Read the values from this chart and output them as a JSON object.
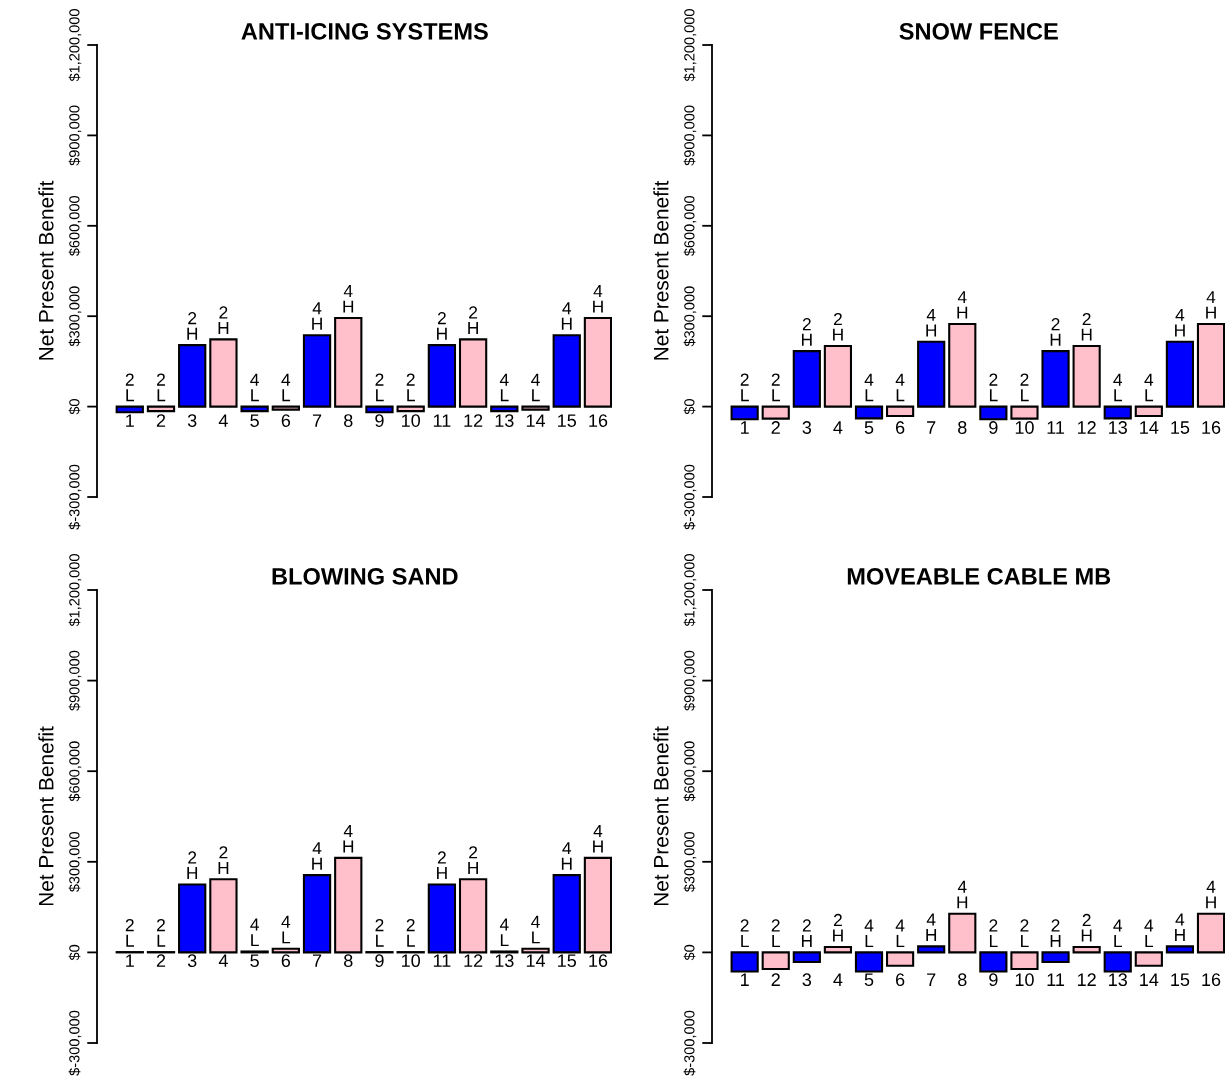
{
  "chart_data": [
    {
      "type": "bar",
      "title": "ANTI-ICING SYSTEMS",
      "ylabel": "Net Present Benefit",
      "categories": [
        "1",
        "2",
        "3",
        "4",
        "5",
        "6",
        "7",
        "8",
        "9",
        "10",
        "11",
        "12",
        "13",
        "14",
        "15",
        "16"
      ],
      "values": [
        -19000,
        -15000,
        204000,
        223000,
        -15000,
        -10000,
        237000,
        294000,
        -19000,
        -15000,
        204000,
        223000,
        -15000,
        -10000,
        237000,
        294000
      ],
      "colors": [
        "#0000ff",
        "#ffc0cb",
        "#0000ff",
        "#ffc0cb",
        "#0000ff",
        "#ffc0cb",
        "#0000ff",
        "#ffc0cb",
        "#0000ff",
        "#ffc0cb",
        "#0000ff",
        "#ffc0cb",
        "#0000ff",
        "#ffc0cb",
        "#0000ff",
        "#ffc0cb"
      ],
      "annotations": [
        {
          "text": "2\nL",
          "x": "1",
          "y": 0
        },
        {
          "text": "2\nL",
          "x": "2",
          "y": 0
        },
        {
          "text": "2\nH",
          "x": "3",
          "y": 204000
        },
        {
          "text": "2\nH",
          "x": "4",
          "y": 223000
        },
        {
          "text": "4\nL",
          "x": "5",
          "y": 0
        },
        {
          "text": "4\nL",
          "x": "6",
          "y": 0
        },
        {
          "text": "4\nH",
          "x": "7",
          "y": 237000
        },
        {
          "text": "4\nH",
          "x": "8",
          "y": 294000
        },
        {
          "text": "2\nL",
          "x": "9",
          "y": 0
        },
        {
          "text": "2\nL",
          "x": "10",
          "y": 0
        },
        {
          "text": "2\nH",
          "x": "11",
          "y": 204000
        },
        {
          "text": "2\nH",
          "x": "12",
          "y": 223000
        },
        {
          "text": "4\nL",
          "x": "13",
          "y": 0
        },
        {
          "text": "4\nL",
          "x": "14",
          "y": 0
        },
        {
          "text": "4\nH",
          "x": "15",
          "y": 237000
        },
        {
          "text": "4\nH",
          "x": "16",
          "y": 294000
        }
      ],
      "ylim": [
        -300000,
        1200000
      ],
      "yticks": [
        {
          "value": -300000,
          "label": "$-300,000"
        },
        {
          "value": 0,
          "label": "$0"
        },
        {
          "value": 300000,
          "label": "$300,000"
        },
        {
          "value": 600000,
          "label": "$600,000"
        },
        {
          "value": 900000,
          "label": "$900,000"
        },
        {
          "value": 1200000,
          "label": "$1,200,000"
        }
      ]
    },
    {
      "type": "bar",
      "title": "SNOW FENCE",
      "ylabel": "Net Present Benefit",
      "categories": [
        "1",
        "2",
        "3",
        "4",
        "5",
        "6",
        "7",
        "8",
        "9",
        "10",
        "11",
        "12",
        "13",
        "14",
        "15",
        "16"
      ],
      "values": [
        -42000,
        -40000,
        184000,
        201000,
        -39000,
        -31000,
        215000,
        274000,
        -42000,
        -40000,
        184000,
        201000,
        -39000,
        -31000,
        215000,
        274000
      ],
      "colors": [
        "#0000ff",
        "#ffc0cb",
        "#0000ff",
        "#ffc0cb",
        "#0000ff",
        "#ffc0cb",
        "#0000ff",
        "#ffc0cb",
        "#0000ff",
        "#ffc0cb",
        "#0000ff",
        "#ffc0cb",
        "#0000ff",
        "#ffc0cb",
        "#0000ff",
        "#ffc0cb"
      ],
      "annotations": [
        {
          "text": "2\nL",
          "x": "1",
          "y": 0
        },
        {
          "text": "2\nL",
          "x": "2",
          "y": 0
        },
        {
          "text": "2\nH",
          "x": "3",
          "y": 184000
        },
        {
          "text": "2\nH",
          "x": "4",
          "y": 201000
        },
        {
          "text": "4\nL",
          "x": "5",
          "y": 0
        },
        {
          "text": "4\nL",
          "x": "6",
          "y": 0
        },
        {
          "text": "4\nH",
          "x": "7",
          "y": 215000
        },
        {
          "text": "4\nH",
          "x": "8",
          "y": 274000
        },
        {
          "text": "2\nL",
          "x": "9",
          "y": 0
        },
        {
          "text": "2\nL",
          "x": "10",
          "y": 0
        },
        {
          "text": "2\nH",
          "x": "11",
          "y": 184000
        },
        {
          "text": "2\nH",
          "x": "12",
          "y": 201000
        },
        {
          "text": "4\nL",
          "x": "13",
          "y": 0
        },
        {
          "text": "4\nL",
          "x": "14",
          "y": 0
        },
        {
          "text": "4\nH",
          "x": "15",
          "y": 215000
        },
        {
          "text": "4\nH",
          "x": "16",
          "y": 274000
        }
      ],
      "ylim": [
        -300000,
        1200000
      ],
      "yticks": [
        {
          "value": -300000,
          "label": "$-300,000"
        },
        {
          "value": 0,
          "label": "$0"
        },
        {
          "value": 300000,
          "label": "$300,000"
        },
        {
          "value": 600000,
          "label": "$600,000"
        },
        {
          "value": 900000,
          "label": "$900,000"
        },
        {
          "value": 1200000,
          "label": "$1,200,000"
        }
      ]
    },
    {
      "type": "bar",
      "title": "BLOWING SAND",
      "ylabel": "Net Present Benefit",
      "categories": [
        "1",
        "2",
        "3",
        "4",
        "5",
        "6",
        "7",
        "8",
        "9",
        "10",
        "11",
        "12",
        "13",
        "14",
        "15",
        "16"
      ],
      "values": [
        1000,
        1000,
        225000,
        242000,
        3000,
        12000,
        256000,
        313000,
        1000,
        1000,
        225000,
        242000,
        3000,
        12000,
        256000,
        313000
      ],
      "colors": [
        "#0000ff",
        "#ffc0cb",
        "#0000ff",
        "#ffc0cb",
        "#0000ff",
        "#ffc0cb",
        "#0000ff",
        "#ffc0cb",
        "#0000ff",
        "#ffc0cb",
        "#0000ff",
        "#ffc0cb",
        "#0000ff",
        "#ffc0cb",
        "#0000ff",
        "#ffc0cb"
      ],
      "annotations": [
        {
          "text": "2\nL",
          "x": "1",
          "y": 1000
        },
        {
          "text": "2\nL",
          "x": "2",
          "y": 1000
        },
        {
          "text": "2\nH",
          "x": "3",
          "y": 225000
        },
        {
          "text": "2\nH",
          "x": "4",
          "y": 242000
        },
        {
          "text": "4\nL",
          "x": "5",
          "y": 3000
        },
        {
          "text": "4\nL",
          "x": "6",
          "y": 12000
        },
        {
          "text": "4\nH",
          "x": "7",
          "y": 256000
        },
        {
          "text": "4\nH",
          "x": "8",
          "y": 313000
        },
        {
          "text": "2\nL",
          "x": "9",
          "y": 1000
        },
        {
          "text": "2\nL",
          "x": "10",
          "y": 1000
        },
        {
          "text": "2\nH",
          "x": "11",
          "y": 225000
        },
        {
          "text": "2\nH",
          "x": "12",
          "y": 242000
        },
        {
          "text": "4\nL",
          "x": "13",
          "y": 3000
        },
        {
          "text": "4\nL",
          "x": "14",
          "y": 12000
        },
        {
          "text": "4\nH",
          "x": "15",
          "y": 256000
        },
        {
          "text": "4\nH",
          "x": "16",
          "y": 313000
        }
      ],
      "ylim": [
        -300000,
        1200000
      ],
      "yticks": [
        {
          "value": -300000,
          "label": "$-300,000"
        },
        {
          "value": 0,
          "label": "$0"
        },
        {
          "value": 300000,
          "label": "$300,000"
        },
        {
          "value": 600000,
          "label": "$600,000"
        },
        {
          "value": 900000,
          "label": "$900,000"
        },
        {
          "value": 1200000,
          "label": "$1,200,000"
        }
      ]
    },
    {
      "type": "bar",
      "title": "MOVEABLE CABLE MB",
      "ylabel": "Net Present Benefit",
      "categories": [
        "1",
        "2",
        "3",
        "4",
        "5",
        "6",
        "7",
        "8",
        "9",
        "10",
        "11",
        "12",
        "13",
        "14",
        "15",
        "16"
      ],
      "values": [
        -63000,
        -55000,
        -32000,
        18000,
        -63000,
        -44000,
        20000,
        128000,
        -63000,
        -55000,
        -32000,
        18000,
        -63000,
        -44000,
        20000,
        128000
      ],
      "colors": [
        "#0000ff",
        "#ffc0cb",
        "#0000ff",
        "#ffc0cb",
        "#0000ff",
        "#ffc0cb",
        "#0000ff",
        "#ffc0cb",
        "#0000ff",
        "#ffc0cb",
        "#0000ff",
        "#ffc0cb",
        "#0000ff",
        "#ffc0cb",
        "#0000ff",
        "#ffc0cb"
      ],
      "annotations": [
        {
          "text": "2\nL",
          "x": "1",
          "y": 0
        },
        {
          "text": "2\nL",
          "x": "2",
          "y": 0
        },
        {
          "text": "2\nH",
          "x": "3",
          "y": 0
        },
        {
          "text": "2\nH",
          "x": "4",
          "y": 18000
        },
        {
          "text": "4\nL",
          "x": "5",
          "y": 0
        },
        {
          "text": "4\nL",
          "x": "6",
          "y": 0
        },
        {
          "text": "4\nH",
          "x": "7",
          "y": 20000
        },
        {
          "text": "4\nH",
          "x": "8",
          "y": 128000
        },
        {
          "text": "2\nL",
          "x": "9",
          "y": 0
        },
        {
          "text": "2\nL",
          "x": "10",
          "y": 0
        },
        {
          "text": "2\nH",
          "x": "11",
          "y": 0
        },
        {
          "text": "2\nH",
          "x": "12",
          "y": 18000
        },
        {
          "text": "4\nL",
          "x": "13",
          "y": 0
        },
        {
          "text": "4\nL",
          "x": "14",
          "y": 0
        },
        {
          "text": "4\nH",
          "x": "15",
          "y": 20000
        },
        {
          "text": "4\nH",
          "x": "16",
          "y": 128000
        }
      ],
      "ylim": [
        -300000,
        1200000
      ],
      "yticks": [
        {
          "value": -300000,
          "label": "$-300,000"
        },
        {
          "value": 0,
          "label": "$0"
        },
        {
          "value": 300000,
          "label": "$300,000"
        },
        {
          "value": 600000,
          "label": "$600,000"
        },
        {
          "value": 900000,
          "label": "$900,000"
        },
        {
          "value": 1200000,
          "label": "$1,200,000"
        }
      ]
    }
  ]
}
